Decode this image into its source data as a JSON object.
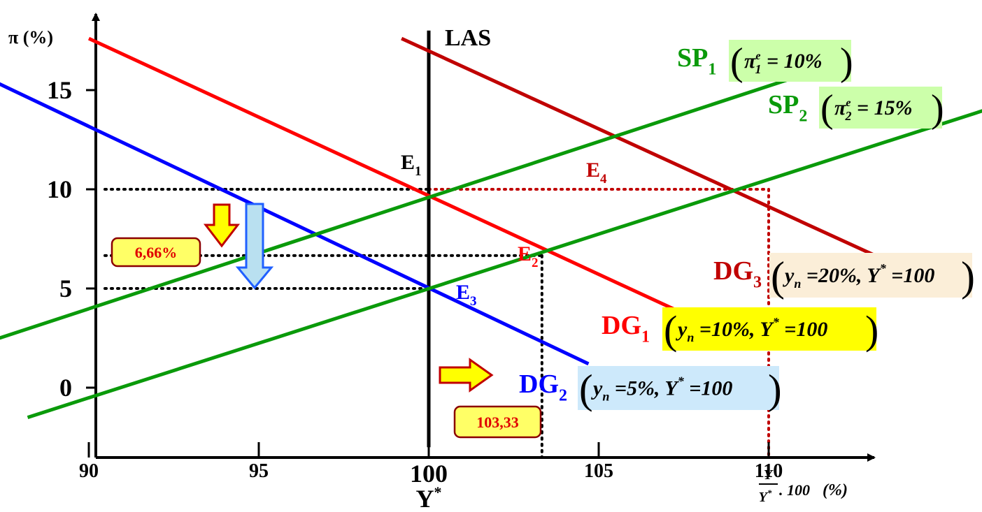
{
  "chart_data": {
    "type": "line",
    "ylabel": "π (%)",
    "yticks": [
      {
        "label": "0",
        "value": 0
      },
      {
        "label": "5",
        "value": 5
      },
      {
        "label": "10",
        "value": 10
      },
      {
        "label": "15",
        "value": 15
      }
    ],
    "xticks": [
      {
        "label": "90",
        "value": 90
      },
      {
        "label": "95",
        "value": 95
      },
      {
        "label": "100",
        "value": 100
      },
      {
        "label": "105",
        "value": 105
      },
      {
        "label": "110",
        "value": 110
      }
    ],
    "xlabel_under_100": "Y",
    "xlabel_under_100_sup": "*",
    "xaxis_label": {
      "numerator": "Y",
      "denominator": "Y",
      "denominator_sup": "*",
      "suffix": ". 100",
      "unit": "(%)"
    },
    "xlim": [
      82,
      122
    ],
    "ylim": [
      -3,
      18
    ],
    "lines": [
      {
        "key": "las",
        "label": "LAS",
        "sub": "",
        "color": "#000000",
        "points": [
          [
            100,
            -3
          ],
          [
            100,
            18
          ]
        ]
      },
      {
        "key": "dg2",
        "label": "DG",
        "sub": "2",
        "color": "#0000ff",
        "points": [
          [
            83.7,
            18.3
          ],
          [
            104.7,
            1.2
          ]
        ]
      },
      {
        "key": "dg1",
        "label": "DG",
        "sub": "1",
        "color": "#ff0000",
        "points": [
          [
            90,
            17.6
          ],
          [
            108.3,
            3.1
          ]
        ]
      },
      {
        "key": "dg3",
        "label": "DG",
        "sub": "3",
        "color": "#c00000",
        "points": [
          [
            99.2,
            17.6
          ],
          [
            114.1,
            5.9
          ]
        ]
      },
      {
        "key": "sp1",
        "label": "SP",
        "sub": "1",
        "color": "#0a9a0a",
        "points": [
          [
            86.3,
            1.9
          ],
          [
            112.3,
            16.5
          ]
        ]
      },
      {
        "key": "sp2",
        "label": "SP",
        "sub": "2",
        "color": "#0a9a0a",
        "points": [
          [
            88.2,
            -1.5
          ],
          [
            117.1,
            14.4
          ]
        ]
      }
    ],
    "points": [
      {
        "key": "e1",
        "label": "E",
        "sub": "1",
        "x": 100,
        "y": 10,
        "color": "#000000"
      },
      {
        "key": "e2",
        "label": "E",
        "sub": "2",
        "x": 103.33,
        "y": 6.66,
        "color": "#ff0000"
      },
      {
        "key": "e3",
        "label": "E",
        "sub": "3",
        "x": 100,
        "y": 5,
        "color": "#0000ff"
      },
      {
        "key": "e4",
        "label": "E",
        "sub": "4",
        "x": 110,
        "y": 10,
        "color": "#c00000"
      }
    ],
    "annotations": {
      "sp1": {
        "text": "π",
        "sub": "1",
        "sup": "e",
        "rest": "= 10%",
        "bg": "#ccffaa"
      },
      "sp2": {
        "text": "π",
        "sub": "2",
        "sup": "e",
        "rest": "= 15%",
        "bg": "#ccffaa"
      },
      "dg3": {
        "text": "y",
        "sub": "n",
        "mid": " =20%, Y",
        "sup": "*",
        "rest": " =100",
        "bg": "#fbeed8"
      },
      "dg1": {
        "text": "y",
        "sub": "n",
        "mid": " =10%, Y",
        "sup": "*",
        "rest": " =100",
        "bg": "#ffff00"
      },
      "dg2": {
        "text": "y",
        "sub": "n",
        "mid": " =5%, Y",
        "sup": "*",
        "rest": " =100",
        "bg": "#cde9fb"
      }
    },
    "callouts": {
      "pi_value": "6,66%",
      "y_value": "103,33"
    },
    "colors": {
      "arrow_yellow": "#ffff00",
      "arrow_border": "#c00000",
      "arrow_blue": "#b9e0f0",
      "arrow_blue_border": "#2060ff",
      "callout_bg": "#ffff66"
    }
  }
}
